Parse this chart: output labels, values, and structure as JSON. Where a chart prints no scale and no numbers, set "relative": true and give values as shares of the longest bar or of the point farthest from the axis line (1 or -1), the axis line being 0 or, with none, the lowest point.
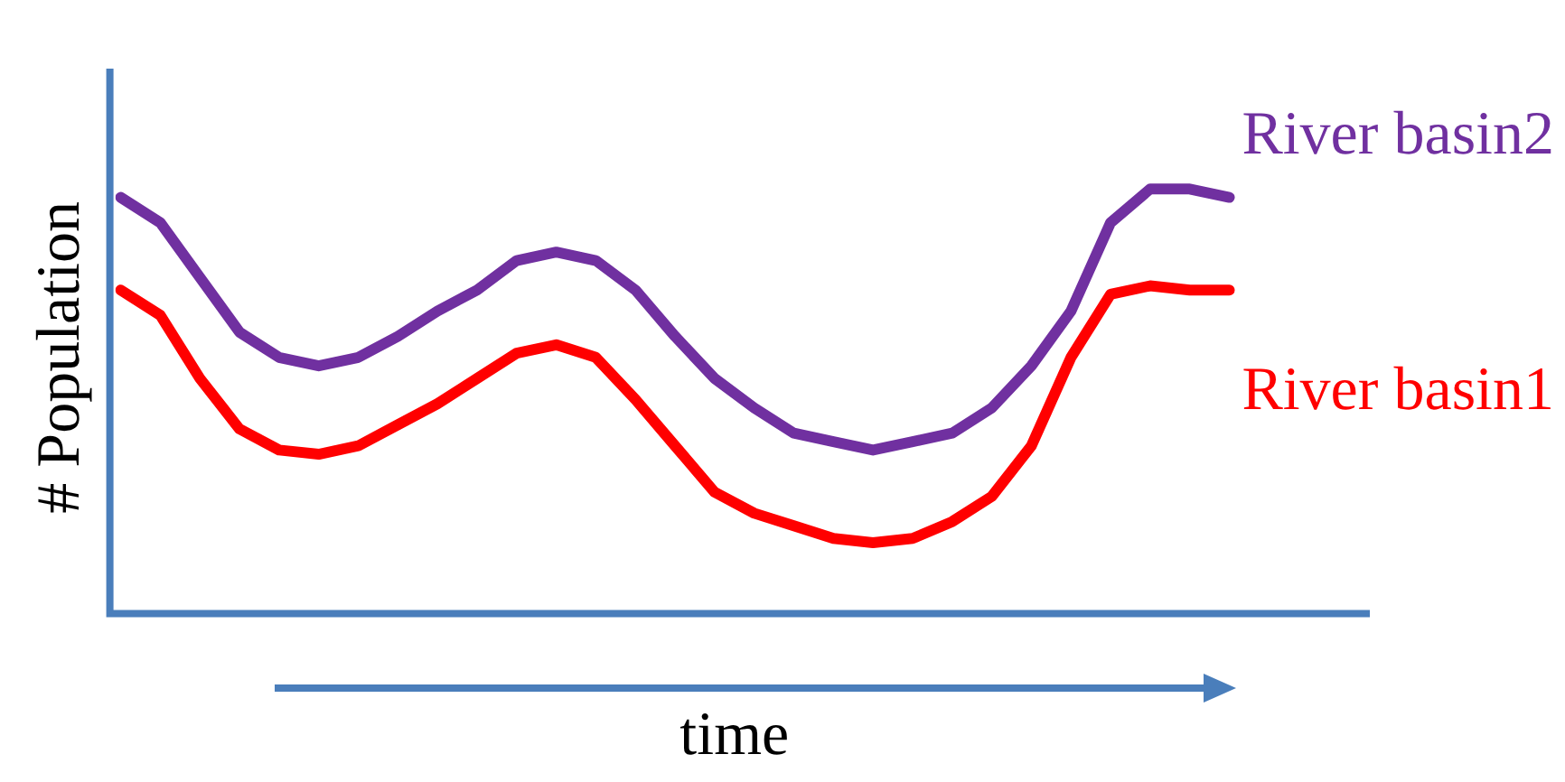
{
  "chart_data": {
    "type": "line",
    "relative": true,
    "xlabel": "time",
    "ylabel": "# Population",
    "legend": false,
    "grid": false,
    "marker": "none",
    "line_style": "solid",
    "categories": [
      null,
      null,
      null,
      null,
      null,
      null,
      null,
      null,
      null,
      null,
      null,
      null,
      null,
      null,
      null,
      null,
      null,
      null,
      null,
      null,
      null,
      null,
      null,
      null,
      null,
      null,
      null,
      null,
      null,
      null,
      null,
      null
    ],
    "series": [
      {
        "name": "River basin2",
        "color": "#7030a0",
        "values": [
          0.98,
          0.92,
          0.79,
          0.66,
          0.6,
          0.58,
          0.6,
          0.65,
          0.71,
          0.76,
          0.83,
          0.85,
          0.83,
          0.76,
          0.65,
          0.55,
          0.48,
          0.42,
          0.4,
          0.38,
          0.4,
          0.42,
          0.48,
          0.58,
          0.71,
          0.92,
          1,
          1,
          0.98,
          null,
          null,
          null
        ]
      },
      {
        "name": "River basin1",
        "color": "#ff0000",
        "values": [
          0.76,
          0.7,
          0.55,
          0.43,
          0.38,
          0.37,
          0.39,
          0.44,
          0.49,
          0.55,
          0.61,
          0.63,
          0.6,
          0.5,
          0.39,
          0.28,
          0.23,
          0.2,
          0.17,
          0.16,
          0.17,
          0.21,
          0.27,
          0.39,
          0.6,
          0.75,
          0.77,
          0.76,
          0.76,
          null,
          null,
          null
        ]
      }
    ]
  }
}
